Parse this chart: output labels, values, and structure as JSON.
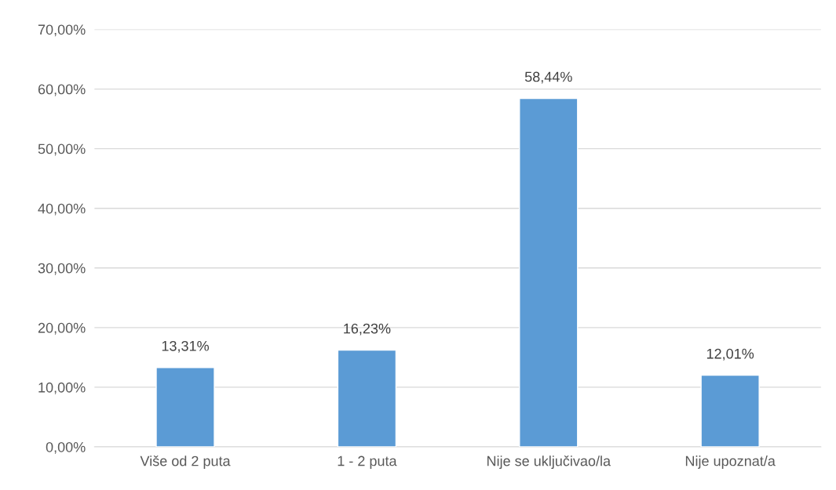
{
  "chart_data": {
    "type": "bar",
    "categories": [
      "Više od 2 puta",
      "1 - 2 puta",
      "Nije se uključivao/la",
      "Nije upoznat/a"
    ],
    "values": [
      13.31,
      16.23,
      58.44,
      12.01
    ],
    "value_labels": [
      "13,31%",
      "16,23%",
      "58,44%",
      "12,01%"
    ],
    "color": "#5b9bd5",
    "ylim": [
      0,
      70
    ],
    "yticks": [
      {
        "value": 0,
        "label": "0,00%"
      },
      {
        "value": 10,
        "label": "10,00%"
      },
      {
        "value": 20,
        "label": "20,00%"
      },
      {
        "value": 30,
        "label": "30,00%"
      },
      {
        "value": 40,
        "label": "40,00%"
      },
      {
        "value": 50,
        "label": "50,00%"
      },
      {
        "value": 60,
        "label": "60,00%"
      },
      {
        "value": 70,
        "label": "70,00%"
      }
    ],
    "grid": "y"
  }
}
